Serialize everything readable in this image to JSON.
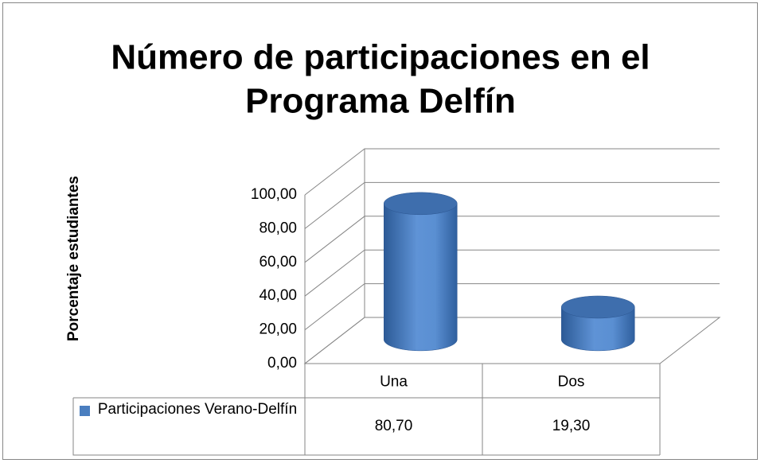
{
  "chart_data": {
    "type": "bar",
    "title": "Número de participaciones en el Programa Delfín",
    "y_axis_label": "Porcentaje estudiantes",
    "categories": [
      "Una",
      "Dos"
    ],
    "series": [
      {
        "name": "Participaciones Verano-Delfín",
        "color": "#4a7ebf",
        "values": [
          80.7,
          19.3
        ],
        "value_labels": [
          "80,70",
          "19,30"
        ]
      }
    ],
    "ylim": [
      0,
      100
    ],
    "yticks": [
      {
        "value": 0,
        "label": "0,00"
      },
      {
        "value": 20,
        "label": "20,00"
      },
      {
        "value": 40,
        "label": "40,00"
      },
      {
        "value": 60,
        "label": "60,00"
      },
      {
        "value": 80,
        "label": "80,00"
      },
      {
        "value": 100,
        "label": "100,00"
      }
    ],
    "grid": true
  }
}
